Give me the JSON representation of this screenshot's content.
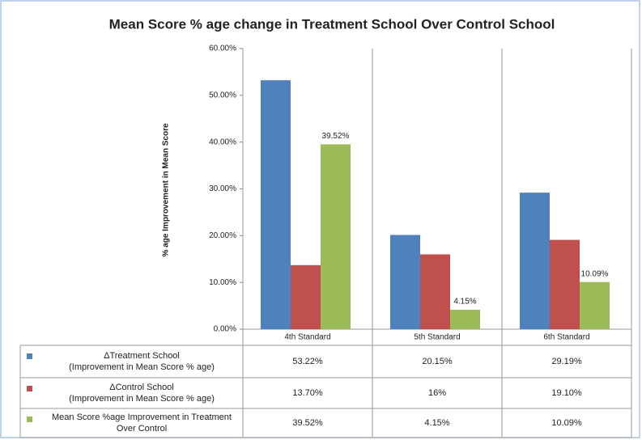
{
  "chart_data": {
    "type": "bar",
    "title": "Mean Score % age change in Treatment School Over Control School",
    "y_label": "% age Improvement in Mean Score",
    "categories": [
      "4th Standard",
      "5th Standard",
      "6th Standard"
    ],
    "series": [
      {
        "name": "ΔTreatment School\n(Improvement in Mean Score % age)",
        "color": "#4f81bd",
        "values": [
          53.22,
          20.15,
          29.19
        ],
        "value_labels": [
          "53.22%",
          "20.15%",
          "29.19%"
        ],
        "show_labels": false
      },
      {
        "name": "ΔControl School\n(Improvement in Mean Score % age)",
        "color": "#c0504d",
        "values": [
          13.7,
          16,
          19.1
        ],
        "value_labels": [
          "13.70%",
          "16%",
          "19.10%"
        ],
        "show_labels": false
      },
      {
        "name": "Mean Score %age Improvement in Treatment\nOver Control",
        "color": "#9bbb59",
        "values": [
          39.52,
          4.15,
          10.09
        ],
        "value_labels": [
          "39.52%",
          "4.15%",
          "10.09%"
        ],
        "show_labels": true
      }
    ],
    "ylim": [
      0,
      60
    ],
    "yticks": [
      {
        "value": 0,
        "label": "0.00%"
      },
      {
        "value": 10,
        "label": "10.00%"
      },
      {
        "value": 20,
        "label": "20.00%"
      },
      {
        "value": 30,
        "label": "30.00%"
      },
      {
        "value": 40,
        "label": "40.00%"
      },
      {
        "value": 50,
        "label": "50.00%"
      },
      {
        "value": 60,
        "label": "60.00%"
      }
    ],
    "grid": false
  }
}
